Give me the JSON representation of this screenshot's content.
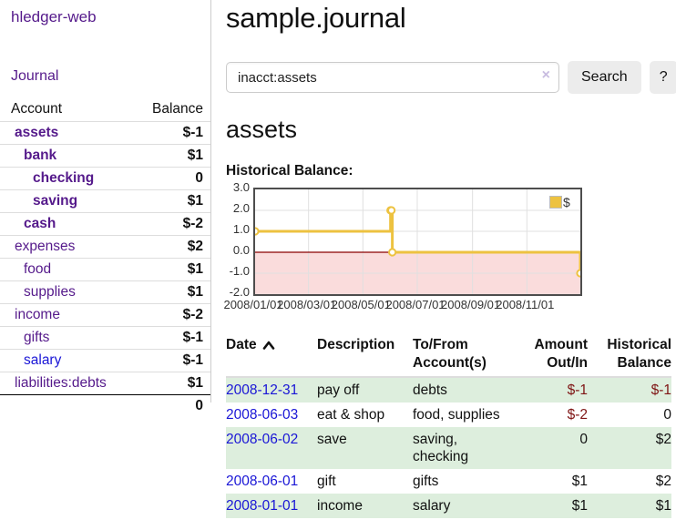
{
  "colors": {
    "link_purple": "#551a8b",
    "link_blue": "#1a16d6",
    "negative_strong": "#7f1414",
    "negative_dim": "#b46868",
    "row_stripe_green": "#ddeedd",
    "series_yellow": "#edc240",
    "negative_region_pink": "#fadcdc",
    "zero_line_red": "#8b0000"
  },
  "sidebar": {
    "app_title": "hledger-web",
    "nav_journal": "Journal",
    "accounts": {
      "col_account": "Account",
      "col_balance": "Balance",
      "rows": [
        {
          "name": "assets",
          "balance": "$-1"
        },
        {
          "name": "bank",
          "balance": "$1"
        },
        {
          "name": "checking",
          "balance": "0"
        },
        {
          "name": "saving",
          "balance": "$1"
        },
        {
          "name": "cash",
          "balance": "$-2"
        },
        {
          "name": "expenses",
          "balance": "$2"
        },
        {
          "name": "food",
          "balance": "$1"
        },
        {
          "name": "supplies",
          "balance": "$1"
        },
        {
          "name": "income",
          "balance": "$-2"
        },
        {
          "name": "gifts",
          "balance": "$-1"
        },
        {
          "name": "salary",
          "balance": "$-1"
        },
        {
          "name": "liabilities:debts",
          "balance": "$1"
        }
      ],
      "total": "0"
    }
  },
  "main": {
    "page_title": "sample.journal",
    "search": {
      "value": "inacct:assets",
      "clear_icon": "×",
      "search_button": "Search",
      "help_button": "?"
    },
    "account_heading": "assets",
    "section_label": "Historical Balance:"
  },
  "register": {
    "headers": {
      "date": "Date",
      "description": "Description",
      "tofrom_1": "To/From",
      "tofrom_2": "Account(s)",
      "amount_1": "Amount",
      "amount_2": "Out/In",
      "hist_1": "Historical",
      "hist_2": "Balance"
    },
    "rows": [
      {
        "date": "2008-12-31",
        "description": "pay off",
        "accounts": "debts",
        "amount": "$-1",
        "balance": "$-1"
      },
      {
        "date": "2008-06-03",
        "description": "eat & shop",
        "accounts": "food, supplies",
        "amount": "$-2",
        "balance": "0"
      },
      {
        "date": "2008-06-02",
        "description": "save",
        "accounts": "saving, checking",
        "amount": "0",
        "balance": "$2"
      },
      {
        "date": "2008-06-01",
        "description": "gift",
        "accounts": "gifts",
        "amount": "$1",
        "balance": "$2"
      },
      {
        "date": "2008-01-01",
        "description": "income",
        "accounts": "salary",
        "amount": "$1",
        "balance": "$1"
      }
    ]
  },
  "chart_data": {
    "type": "line",
    "step": true,
    "title": "Historical Balance:",
    "series": [
      {
        "name": "$",
        "color": "#edc240",
        "points": [
          [
            "2008-01-01",
            1
          ],
          [
            "2008-06-01",
            2
          ],
          [
            "2008-06-02",
            2
          ],
          [
            "2008-06-03",
            0
          ],
          [
            "2008-12-31",
            -1
          ]
        ]
      }
    ],
    "xlim": [
      "2008-01-01",
      "2008-12-31"
    ],
    "ylim": [
      -2,
      3
    ],
    "ytick_labels": [
      "3.0",
      "2.0",
      "1.0",
      "0.0",
      "-1.0",
      "-2.0"
    ],
    "ytick_values": [
      3,
      2,
      1,
      0,
      -1,
      -2
    ],
    "xtick_labels": [
      "2008/01/01",
      "2008/03/01",
      "2008/05/01",
      "2008/07/01",
      "2008/09/01",
      "2008/11/01"
    ],
    "xtick_dates": [
      "2008-01-01",
      "2008-03-01",
      "2008-05-01",
      "2008-07-01",
      "2008-09-01",
      "2008-11-01"
    ],
    "legend": {
      "position": "top-right",
      "label": "$"
    },
    "negative_region_fill": "#fadcdc",
    "zero_line_color": "#8b0000",
    "grid_color": "#e0e0e0",
    "grid": true
  }
}
